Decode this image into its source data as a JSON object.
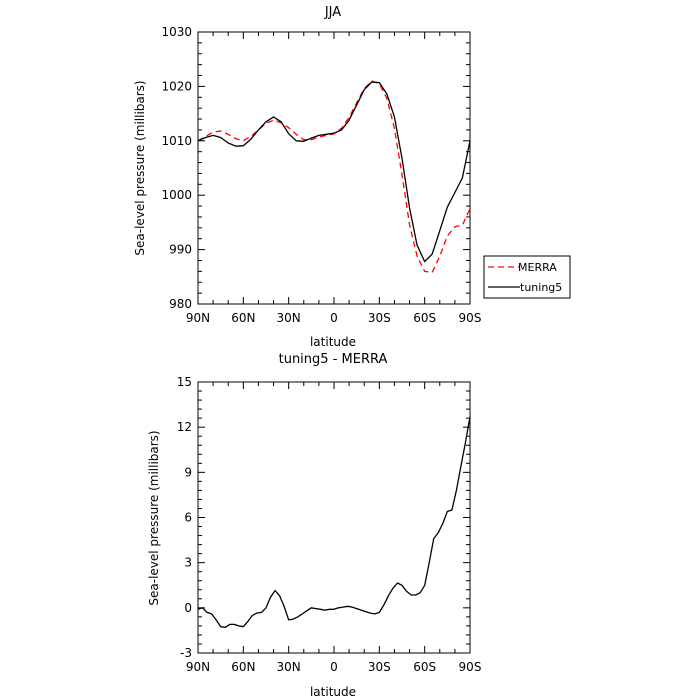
{
  "chart_data": [
    {
      "type": "line",
      "title": "JJA",
      "xlabel": "latitude",
      "ylabel": "Sea-level pressure (millibars)",
      "xlim": [
        90,
        -90
      ],
      "ylim": [
        980,
        1030
      ],
      "x_ticks": [
        "90N",
        "60N",
        "30N",
        "0",
        "30S",
        "60S",
        "90S"
      ],
      "y_ticks": [
        "980",
        "990",
        "1000",
        "1010",
        "1020",
        "1030"
      ],
      "legend_position": "right",
      "series": [
        {
          "name": "MERRA",
          "color": "#ff0000",
          "dash": "dashed",
          "x": [
            90,
            85,
            80,
            75,
            70,
            65,
            60,
            55,
            50,
            45,
            40,
            35,
            30,
            25,
            20,
            15,
            10,
            5,
            0,
            -5,
            -10,
            -15,
            -20,
            -25,
            -30,
            -35,
            -40,
            -45,
            -50,
            -55,
            -60,
            -65,
            -70,
            -75,
            -80,
            -85,
            -90
          ],
          "y": [
            1010,
            1010.8,
            1011.6,
            1011.8,
            1011.2,
            1010.4,
            1010.0,
            1010.8,
            1012.0,
            1013.2,
            1013.8,
            1013.3,
            1012.4,
            1011.2,
            1010.2,
            1010.2,
            1010.7,
            1011.0,
            1011.3,
            1012.3,
            1014.3,
            1017.0,
            1019.6,
            1021.0,
            1020.5,
            1017.8,
            1012.3,
            1003.8,
            994.5,
            988.8,
            986.0,
            985.8,
            988.8,
            992.5,
            994.2,
            994.5,
            997.5
          ]
        },
        {
          "name": "tuning5",
          "color": "#000000",
          "dash": "solid",
          "x": [
            90,
            85,
            80,
            75,
            70,
            65,
            60,
            55,
            50,
            45,
            40,
            35,
            30,
            25,
            20,
            15,
            10,
            5,
            0,
            -5,
            -10,
            -15,
            -20,
            -25,
            -30,
            -35,
            -40,
            -45,
            -50,
            -55,
            -60,
            -65,
            -70,
            -75,
            -80,
            -85,
            -90
          ],
          "y": [
            1010,
            1010.6,
            1011.0,
            1010.6,
            1009.6,
            1009.0,
            1009.1,
            1010.3,
            1012.0,
            1013.5,
            1014.4,
            1013.5,
            1011.3,
            1010.0,
            1009.9,
            1010.5,
            1011.0,
            1011.2,
            1011.4,
            1012.0,
            1013.8,
            1016.6,
            1019.4,
            1020.8,
            1020.7,
            1018.6,
            1014.4,
            1006.8,
            997.6,
            990.8,
            987.8,
            989.2,
            993.5,
            997.8,
            1000.5,
            1003.2,
            1010.0
          ]
        }
      ]
    },
    {
      "type": "line",
      "title": "tuning5 - MERRA",
      "xlabel": "latitude",
      "ylabel": "Sea-level pressure (millibars)",
      "xlim": [
        90,
        -90
      ],
      "ylim": [
        -3,
        15
      ],
      "x_ticks": [
        "90N",
        "60N",
        "30N",
        "0",
        "30S",
        "60S",
        "90S"
      ],
      "y_ticks": [
        "-3",
        "0",
        "3",
        "6",
        "9",
        "12",
        "15"
      ],
      "series": [
        {
          "name": "tuning5 - MERRA",
          "color": "#000000",
          "x": [
            90,
            87,
            84,
            81,
            78,
            75,
            72,
            69,
            66,
            63,
            60,
            57,
            54,
            51,
            48,
            45,
            42,
            39,
            36,
            33,
            30,
            27,
            24,
            21,
            18,
            15,
            12,
            9,
            6,
            3,
            0,
            -3,
            -6,
            -9,
            -12,
            -15,
            -18,
            -21,
            -24,
            -27,
            -30,
            -33,
            -36,
            -39,
            -42,
            -45,
            -48,
            -51,
            -54,
            -57,
            -60,
            -63,
            -66,
            -69,
            -72,
            -75,
            -78,
            -81,
            -84,
            -87,
            -90
          ],
          "y": [
            -0.1,
            0,
            -0.3,
            -0.4,
            -0.8,
            -1.25,
            -1.3,
            -1.1,
            -1.1,
            -1.2,
            -1.25,
            -0.9,
            -0.5,
            -0.35,
            -0.3,
            0,
            0.7,
            1.15,
            0.8,
            0.1,
            -0.8,
            -0.75,
            -0.6,
            -0.4,
            -0.2,
            0,
            -0.05,
            -0.1,
            -0.15,
            -0.1,
            -0.1,
            0,
            0.05,
            0.1,
            0.05,
            -0.05,
            -0.15,
            -0.25,
            -0.35,
            -0.4,
            -0.3,
            0.2,
            0.8,
            1.3,
            1.65,
            1.5,
            1.1,
            0.85,
            0.85,
            1.0,
            1.5,
            3.0,
            4.6,
            5.0,
            5.6,
            6.4,
            6.5,
            7.8,
            9.4,
            11.0,
            12.7
          ]
        }
      ]
    }
  ]
}
